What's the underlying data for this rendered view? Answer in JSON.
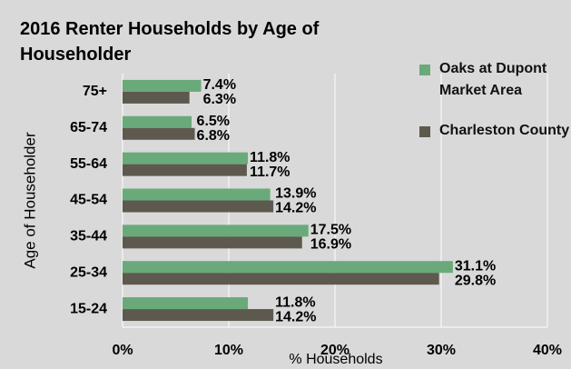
{
  "chart_data": {
    "type": "barh",
    "title": "2016 Renter Households by Age of Householder",
    "x_label": "% Households",
    "y_label": "Age of Householder",
    "categories": [
      "75+",
      "65-74",
      "55-64",
      "45-54",
      "35-44",
      "25-34",
      "15-24"
    ],
    "series": [
      {
        "name": "Oaks at Dupont Market Area",
        "color": "#6aaa7a",
        "values": [
          7.4,
          6.5,
          11.8,
          13.9,
          17.5,
          31.1,
          11.8
        ],
        "value_labels": [
          "7.4%",
          "6.5%",
          "11.8%",
          "13.9%",
          "17.5%",
          "31.1%",
          "11.8%"
        ]
      },
      {
        "name": "Charleston County",
        "color": "#5e594e",
        "values": [
          6.3,
          6.8,
          11.7,
          14.2,
          16.9,
          29.8,
          14.2
        ],
        "value_labels": [
          "6.3%",
          "6.8%",
          "11.7%",
          "14.2%",
          "16.9%",
          "29.8%",
          "14.2%"
        ]
      }
    ],
    "xlim": [
      0,
      40
    ],
    "xticks": [
      {
        "value": 0,
        "label": "0%"
      },
      {
        "value": 10,
        "label": "10%"
      },
      {
        "value": 20,
        "label": "20%"
      },
      {
        "value": 30,
        "label": "30%"
      },
      {
        "value": 40,
        "label": "40%"
      }
    ],
    "grid": true
  }
}
